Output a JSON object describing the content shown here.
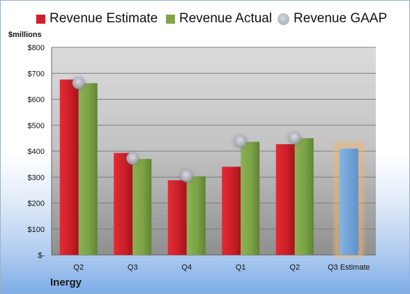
{
  "chart_data": {
    "type": "bar",
    "categories": [
      "Q2",
      "Q3",
      "Q4",
      "Q1",
      "Q2",
      "Q3 Estimate"
    ],
    "series": [
      {
        "name": "Revenue Estimate",
        "kind": "bar",
        "color": "#d0202a",
        "values": [
          676,
          393,
          288,
          340,
          427,
          null
        ]
      },
      {
        "name": "Revenue Actual",
        "kind": "bar",
        "color": "#7fa548",
        "values": [
          662,
          370,
          303,
          436,
          450,
          null
        ]
      },
      {
        "name": "Revenue GAAP",
        "kind": "marker",
        "color": "#a9aeb8",
        "values": [
          663,
          372,
          305,
          438,
          451,
          null
        ]
      }
    ],
    "estimate_bar": {
      "category": "Q3 Estimate",
      "value": 410,
      "color": "#6fa3d8",
      "glow_color": "#f2b46a"
    },
    "ylabel": "$millions",
    "ylim": [
      0,
      800
    ],
    "yticks": [
      0,
      100,
      200,
      300,
      400,
      500,
      600,
      700,
      800
    ],
    "ytick_labels": [
      "$-",
      "$100",
      "$200",
      "$300",
      "$400",
      "$500",
      "$600",
      "$700",
      "$800"
    ],
    "grid": true,
    "legend_position": "top"
  },
  "footer": {
    "company": "Inergy"
  }
}
